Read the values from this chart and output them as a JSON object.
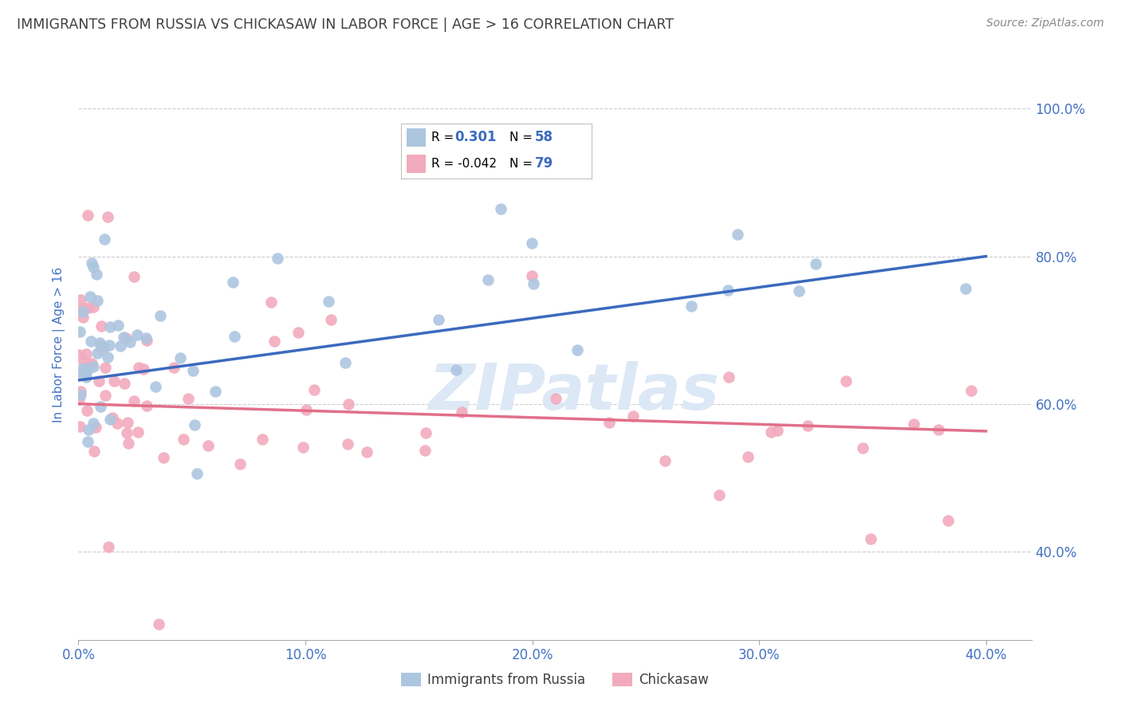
{
  "title": "IMMIGRANTS FROM RUSSIA VS CHICKASAW IN LABOR FORCE | AGE > 16 CORRELATION CHART",
  "source": "Source: ZipAtlas.com",
  "ylabel": "In Labor Force | Age > 16",
  "xlim": [
    0.0,
    0.42
  ],
  "ylim": [
    0.28,
    1.08
  ],
  "legend_labels": [
    "Immigrants from Russia",
    "Chickasaw"
  ],
  "russia_R": "0.301",
  "russia_N": "58",
  "chickasaw_R": "-0.042",
  "chickasaw_N": "79",
  "russia_color": "#adc6e0",
  "chickasaw_color": "#f2abbe",
  "russia_line_color": "#3b6abf",
  "chickasaw_line_color": "#e0708a",
  "title_color": "#404040",
  "axis_label_color": "#4472c4",
  "background_color": "#ffffff",
  "grid_color": "#c8c8c8",
  "watermark_color": "#dce8f5",
  "russia_line_x0": 0.0,
  "russia_line_x1": 0.4,
  "russia_line_y0": 0.632,
  "russia_line_y1": 0.8,
  "chickasaw_line_x0": 0.0,
  "chickasaw_line_x1": 0.4,
  "chickasaw_line_y0": 0.6,
  "chickasaw_line_y1": 0.563,
  "yticks": [
    0.4,
    0.6,
    0.8,
    1.0
  ],
  "xticks": [
    0.0,
    0.1,
    0.2,
    0.3,
    0.4
  ]
}
